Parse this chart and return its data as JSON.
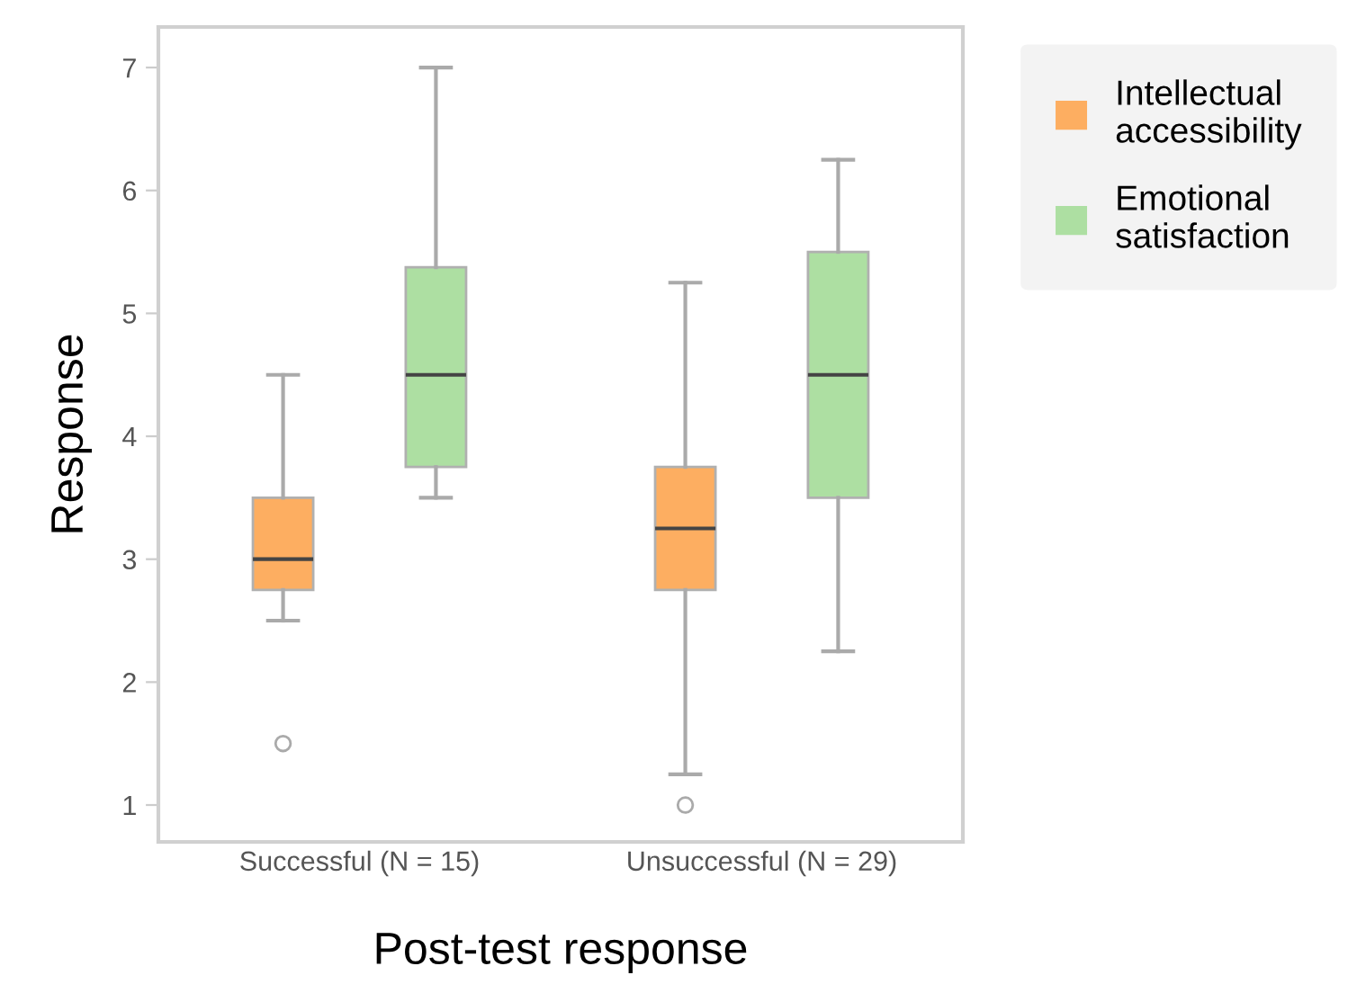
{
  "chart_data": {
    "type": "box",
    "xlabel": "Post-test response",
    "ylabel": "Response",
    "categories": [
      "Successful (N = 15)",
      "Unsuccessful (N = 29)"
    ],
    "series": [
      {
        "name": "Intellectual accessibility",
        "color": "#fdae61",
        "boxes": [
          {
            "low": 2.5,
            "q1": 2.75,
            "median": 3,
            "q3": 3.5,
            "high": 4.5,
            "outliers": [
              1.5
            ]
          },
          {
            "low": 1.25,
            "q1": 2.75,
            "median": 3.25,
            "q3": 3.75,
            "high": 5.25,
            "outliers": [
              1
            ]
          }
        ]
      },
      {
        "name": "Emotional satisfaction",
        "color": "#addfa2",
        "boxes": [
          {
            "low": 3.5,
            "q1": 3.75,
            "median": 4.5,
            "q3": 5.375,
            "high": 7
          },
          {
            "low": 2.25,
            "q1": 3.5,
            "median": 4.5,
            "q3": 5.5,
            "high": 6.25
          }
        ]
      }
    ],
    "ylim": [
      0.7,
      7.33
    ],
    "yticks": [
      1,
      2,
      3,
      4,
      5,
      6,
      7
    ],
    "grid": false,
    "legend": "top right"
  }
}
